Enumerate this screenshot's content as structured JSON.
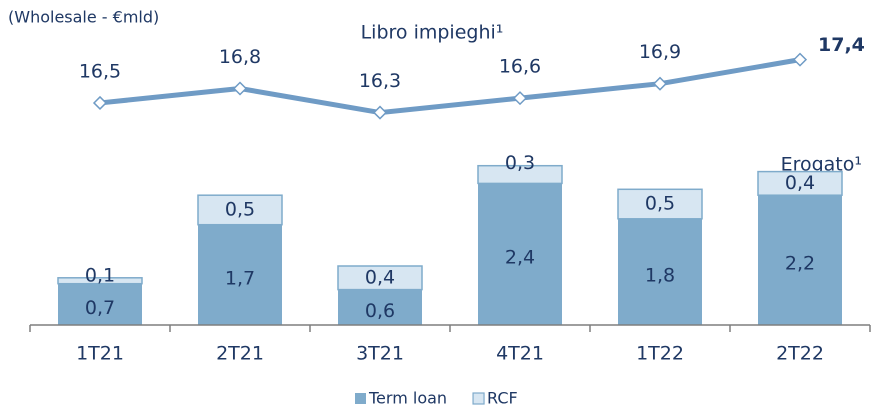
{
  "chart_data": [
    {
      "type": "line",
      "title": "Libro impieghi¹",
      "subtitle": "(Wholesale - €mld)",
      "values": [
        16.5,
        16.8,
        16.3,
        16.6,
        16.9,
        17.4
      ],
      "value_labels": [
        "16,5",
        "16,8",
        "16,3",
        "16,6",
        "16,9",
        "17,4"
      ],
      "color": "#6f9bc5",
      "ylim": [
        16.0,
        17.6
      ]
    },
    {
      "type": "bar",
      "stacked": true,
      "title": "Erogato¹",
      "categories": [
        "1T21",
        "2T21",
        "3T21",
        "4T21",
        "1T22",
        "2T22"
      ],
      "series": [
        {
          "name": "Term loan",
          "color": "#7fabcb",
          "values": [
            0.7,
            1.7,
            0.6,
            2.4,
            1.8,
            2.2
          ],
          "value_labels": [
            "0,7",
            "1,7",
            "0,6",
            "2,4",
            "1,8",
            "2,2"
          ]
        },
        {
          "name": "RCF",
          "color": "#d7e6f2",
          "values": [
            0.1,
            0.5,
            0.4,
            0.3,
            0.5,
            0.4
          ],
          "value_labels": [
            "0,1",
            "0,5",
            "0,4",
            "0,3",
            "0,5",
            "0,4"
          ]
        }
      ],
      "ylim": [
        0,
        3
      ],
      "legend": "bottom"
    }
  ]
}
